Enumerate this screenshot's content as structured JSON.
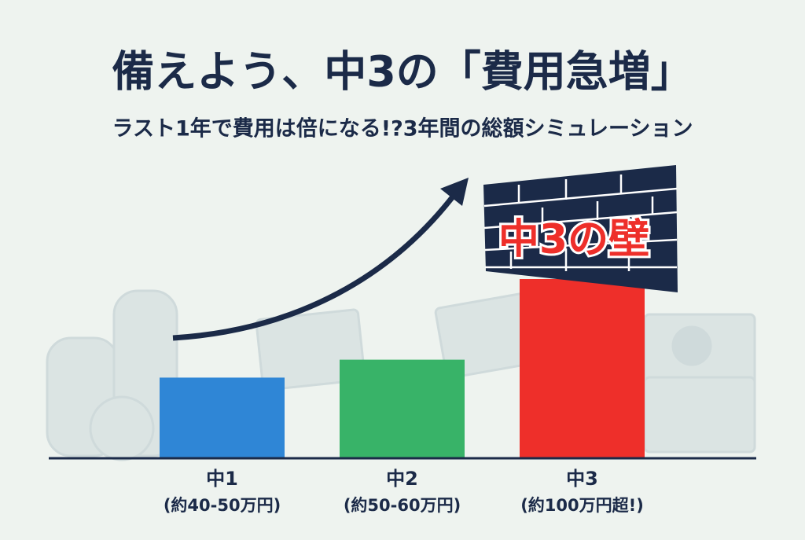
{
  "chart_data": {
    "type": "bar",
    "title": "備えよう、中3の「費用急増」",
    "subtitle": "ラスト1年で費用は倍になる!?3年間の総額シミュレーション",
    "annotation": "中3の壁",
    "categories": [
      "中1",
      "中2",
      "中3"
    ],
    "category_notes": [
      "(約40-50万円)",
      "(約50-60万円)",
      "(約100万円超!)"
    ],
    "values": [
      45,
      55,
      100
    ],
    "colors": [
      "#2f86d6",
      "#38b368",
      "#ee2f2a"
    ]
  }
}
